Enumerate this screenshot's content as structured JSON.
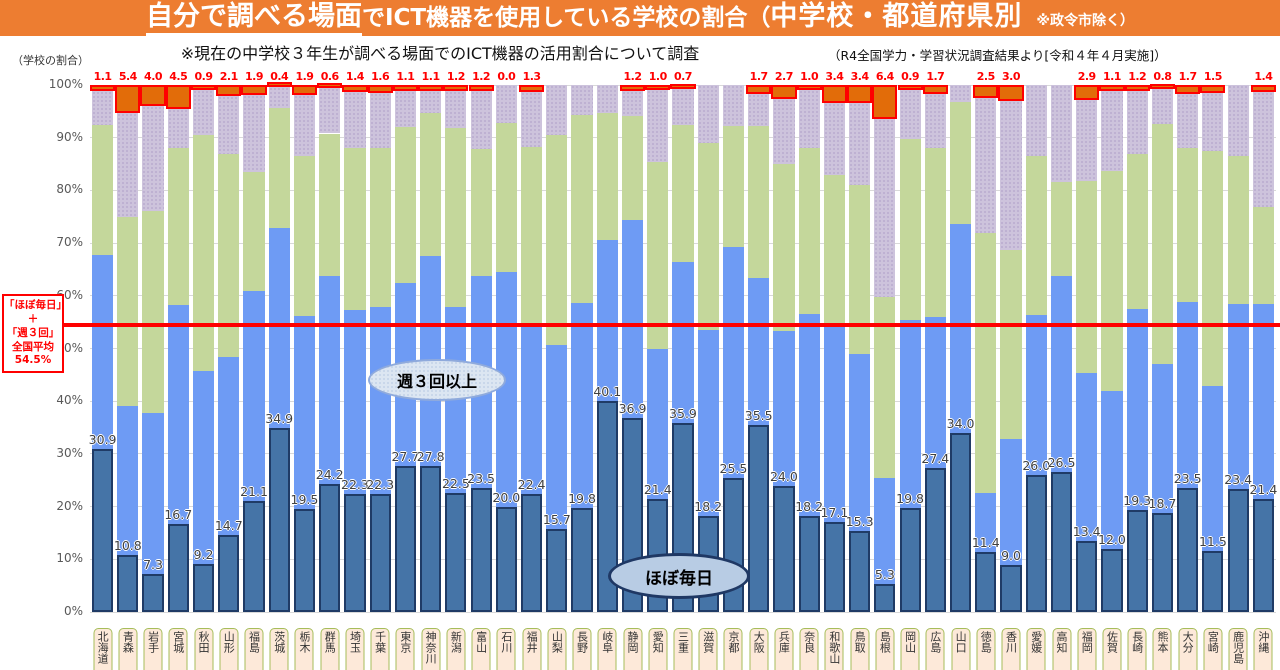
{
  "header": {
    "title_underlined": "自分で調べる場面",
    "title_mid": "でICT機器を使用している学校の割合（",
    "title_big": "中学校・都道府県別",
    "title_note": "　※政令市除く）"
  },
  "subheader": {
    "axis_unit": "（学校の割合）",
    "survey_note": "※現在の中学校３年生が調べる場面でのICT機器の活用割合について調査",
    "source_note": "（R4全国学力・学習状況調査結果より[令和４年４月実施]）"
  },
  "annotations": {
    "week3_plus": "週３回以上",
    "almost_daily": "ほぼ毎日"
  },
  "average_line": {
    "value": 54.5,
    "label_lines": [
      "「ほぼ毎日」",
      "＋",
      "「週３回」",
      "全国平均",
      "54.5%"
    ]
  },
  "colors": {
    "header_bg": "#ED7D31",
    "dark_blue": "#4574A7",
    "dark_blue_border": "#1F3B66",
    "light_blue": "#6E9BF4",
    "green": "#C4D79B",
    "purple": "#CDC3DC",
    "orange_top": "#E26C09",
    "red": "#FF0000",
    "label_box_bg": "#FDE9D9",
    "label_box_border": "#A6BD5A"
  },
  "chart_data": {
    "type": "bar",
    "stacked": true,
    "title": "自分で調べる場面でICT機器を使用している学校の割合（中学校・都道府県別 ※政令市除く）",
    "xlabel": "都道府県",
    "ylabel": "（学校の割合）",
    "ylim": [
      0,
      100
    ],
    "y_ticks": [
      "100%",
      "90%",
      "80%",
      "70%",
      "60%",
      "50%",
      "40%",
      "30%",
      "20%",
      "10%",
      "0%"
    ],
    "grid": true,
    "legend": "none（凡例なし・楕円注記「ほぼ毎日」「週３回以上」のみ）",
    "categories": [
      "北海道",
      "青森",
      "岩手",
      "宮城",
      "秋田",
      "山形",
      "福島",
      "茨城",
      "栃木",
      "群馬",
      "埼玉",
      "千葉",
      "東京",
      "神奈川",
      "新潟",
      "富山",
      "石川",
      "福井",
      "山梨",
      "長野",
      "岐阜",
      "静岡",
      "愛知",
      "三重",
      "滋賀",
      "京都",
      "大阪",
      "兵庫",
      "奈良",
      "和歌山",
      "鳥取",
      "島根",
      "岡山",
      "広島",
      "山口",
      "徳島",
      "香川",
      "愛媛",
      "高知",
      "福岡",
      "佐賀",
      "長崎",
      "熊本",
      "大分",
      "宮崎",
      "鹿児島",
      "沖縄"
    ],
    "series": [
      {
        "name": "ほぼ毎日（濃青・数値ラベルあり）",
        "color_key": "dark_blue",
        "values": [
          30.9,
          10.8,
          7.3,
          16.7,
          9.2,
          14.7,
          21.1,
          34.9,
          19.5,
          24.2,
          22.3,
          22.3,
          27.7,
          27.8,
          22.5,
          23.5,
          20.0,
          22.4,
          15.7,
          19.8,
          40.1,
          36.9,
          21.4,
          35.9,
          18.2,
          25.5,
          35.5,
          24.0,
          18.2,
          17.1,
          15.3,
          5.3,
          19.8,
          27.4,
          34.0,
          11.4,
          9.0,
          26.0,
          26.5,
          13.4,
          12.0,
          19.3,
          18.7,
          23.5,
          11.5,
          23.4,
          21.4
        ]
      },
      {
        "name": "週３回以上（明青・累積上端、目盛から読取り）",
        "color_key": "light_blue",
        "cumulative_top": [
          67.7,
          39.0,
          37.8,
          58.2,
          45.8,
          48.4,
          61.0,
          72.9,
          56.2,
          63.8,
          57.4,
          57.8,
          62.4,
          67.6,
          57.8,
          63.8,
          64.6,
          54.9,
          50.7,
          58.6,
          70.6,
          74.4,
          49.9,
          66.5,
          53.5,
          69.2,
          63.3,
          53.4,
          56.5,
          54.4,
          48.9,
          25.4,
          55.5,
          55.9,
          73.6,
          22.5,
          32.8,
          56.3,
          63.8,
          45.3,
          41.9,
          57.5,
          47.0,
          58.8,
          42.8,
          58.4,
          58.4
        ]
      },
      {
        "name": "緑セグメント（凡例なし・累積上端、目盛から読取り）",
        "color_key": "green",
        "cumulative_top": [
          92.5,
          75.0,
          76.0,
          88.0,
          90.5,
          87.0,
          83.4,
          95.7,
          86.5,
          90.8,
          88.1,
          88.1,
          92.1,
          94.6,
          91.8,
          87.8,
          92.7,
          88.3,
          90.5,
          94.3,
          94.6,
          94.2,
          85.4,
          92.4,
          89.0,
          92.2,
          92.2,
          85.0,
          88.0,
          82.9,
          81.0,
          59.8,
          89.7,
          88.0,
          96.8,
          72.0,
          68.7,
          86.5,
          81.6,
          81.8,
          83.7,
          87.0,
          92.6,
          88.0,
          87.5,
          86.5,
          76.8
        ]
      },
      {
        "name": "紫セグメント（凡例なし・緑上端から最上段手前まで）",
        "color_key": "purple",
        "note": "100%から最上段オレンジ分を差し引いた位置まで"
      },
      {
        "name": "最上段（赤枠オレンジ・赤字数値ラベル）",
        "color_key": "orange_top",
        "values": [
          1.1,
          5.4,
          4.0,
          4.5,
          0.9,
          2.1,
          1.9,
          0.4,
          1.9,
          0.6,
          1.4,
          1.6,
          1.1,
          1.1,
          1.2,
          1.2,
          0.0,
          1.3,
          null,
          null,
          null,
          1.2,
          1.0,
          0.7,
          null,
          null,
          1.7,
          2.7,
          1.0,
          3.4,
          3.4,
          6.4,
          0.9,
          1.7,
          null,
          2.5,
          3.0,
          null,
          null,
          2.9,
          1.1,
          1.2,
          0.8,
          1.7,
          1.5,
          null,
          1.4
        ]
      }
    ]
  }
}
